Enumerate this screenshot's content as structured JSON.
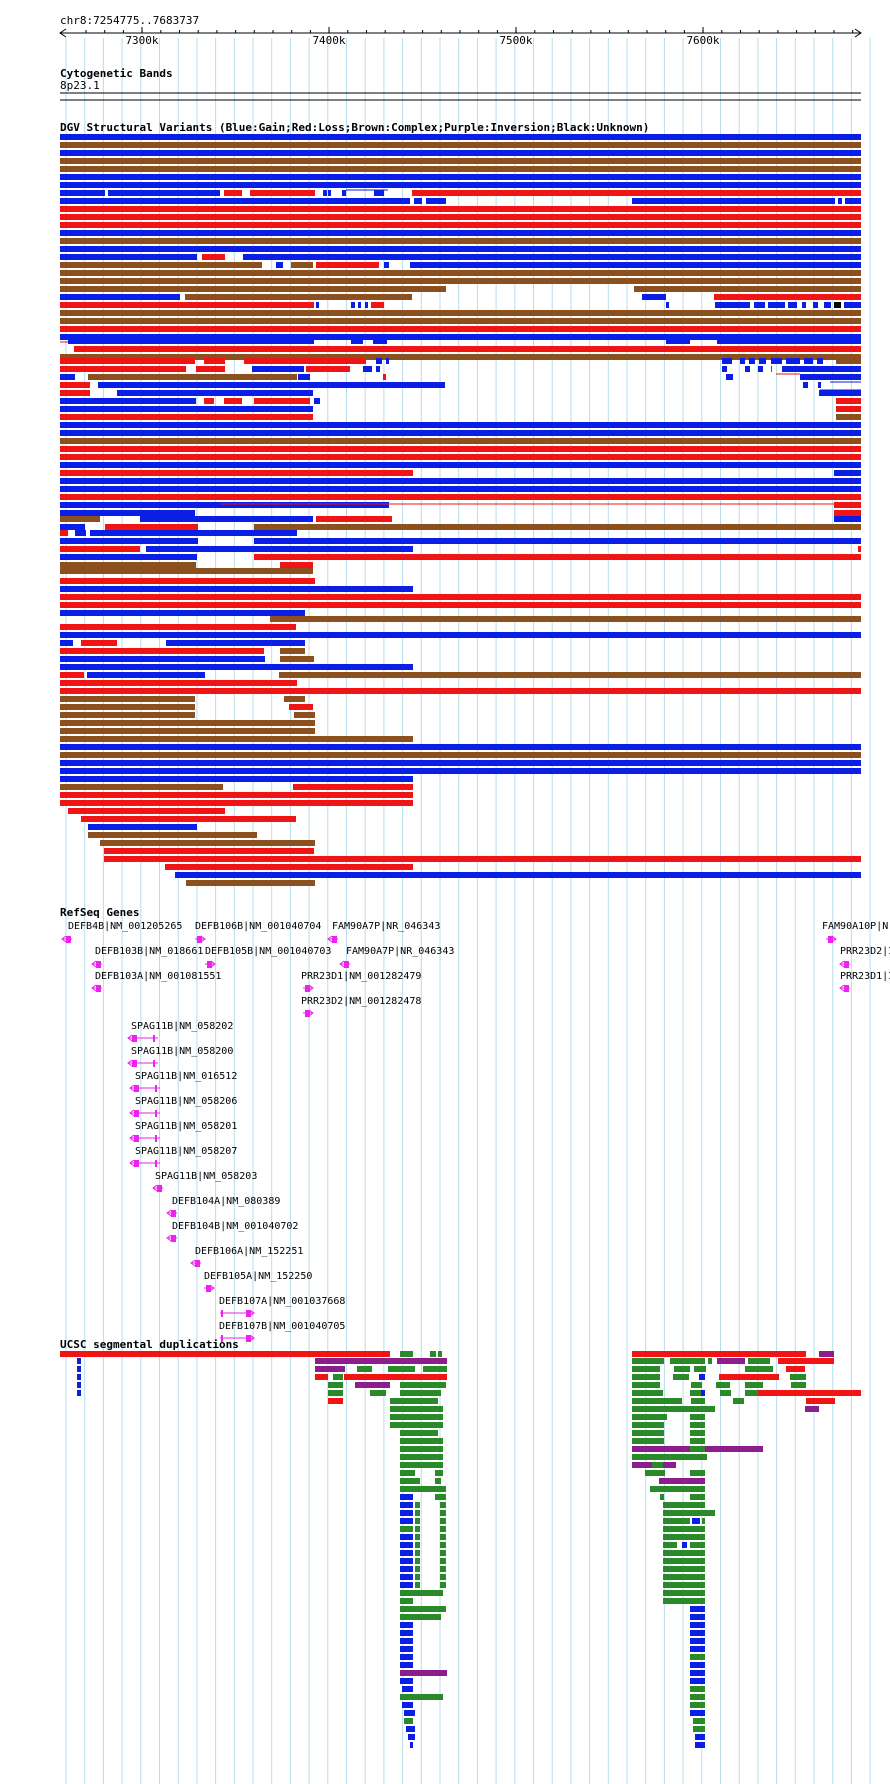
{
  "ruler": {
    "location": "chr8:7254775..7683737",
    "ticks": [
      "7300k",
      "7400k",
      "7500k",
      "7600k"
    ]
  },
  "tracks": {
    "cyto_title": "Cytogenetic Bands",
    "cyto_band": "8p23.1",
    "dgv_title": "DGV Structural Variants (Blue:Gain;Red:Loss;Brown:Complex;Purple:Inversion;Black:Unknown)",
    "refseq_title": "RefSeq Genes",
    "segdup_title": "UCSC segmental duplications"
  },
  "colors": {
    "gain": "#0a1ee6",
    "loss": "#f01414",
    "complex": "#8c501e",
    "inversion": "#8c1e8c",
    "unknown": "#000000",
    "gene": "#ee22ee",
    "segdup_green": "#2a8a2a",
    "grid": "#b8dcec"
  },
  "genes": [
    {
      "label": "DEFB4B|NM_001205265"
    },
    {
      "label": "DEFB106B|NM_001040704"
    },
    {
      "label": "FAM90A7P|NR_046343"
    },
    {
      "label": "FAM90A10P|N"
    },
    {
      "label": "DEFB103B|NM_018661"
    },
    {
      "label": "DEFB105B|NM_001040703"
    },
    {
      "label": "FAM90A7P|NR_046343"
    },
    {
      "label": "PRR23D2|I"
    },
    {
      "label": "DEFB103A|NM_001081551"
    },
    {
      "label": "PRR23D1|NM_001282479"
    },
    {
      "label": "PRR23D1|I"
    },
    {
      "label": "PRR23D2|NM_001282478"
    },
    {
      "label": "SPAG11B|NM_058202"
    },
    {
      "label": "SPAG11B|NM_058200"
    },
    {
      "label": "SPAG11B|NM_016512"
    },
    {
      "label": "SPAG11B|NM_058206"
    },
    {
      "label": "SPAG11B|NM_058201"
    },
    {
      "label": "SPAG11B|NM_058207"
    },
    {
      "label": "SPAG11B|NM_058203"
    },
    {
      "label": "DEFB104A|NM_080389"
    },
    {
      "label": "DEFB104B|NM_001040702"
    },
    {
      "label": "DEFB106A|NM_152251"
    },
    {
      "label": "DEFB105A|NM_152250"
    },
    {
      "label": "DEFB107A|NM_001037668"
    },
    {
      "label": "DEFB107B|NM_001040705"
    }
  ]
}
